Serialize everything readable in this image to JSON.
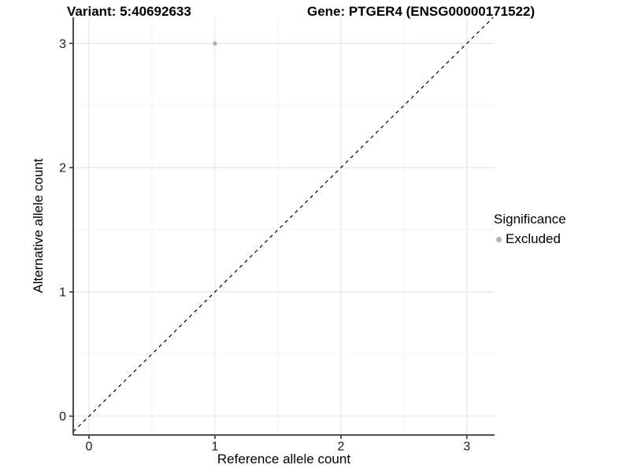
{
  "figure": {
    "titles": {
      "variant": "Variant: 5:40692633",
      "gene": "Gene: PTGER4 (ENSG00000171522)"
    }
  },
  "axes": {
    "x": {
      "label": "Reference allele count",
      "ticks": [
        "0",
        "1",
        "2",
        "3"
      ]
    },
    "y": {
      "label": "Alternative allele count",
      "ticks": [
        "0",
        "1",
        "2",
        "3"
      ]
    }
  },
  "legend": {
    "title": "Significance",
    "items": [
      {
        "label": "Excluded",
        "color": "#b3b3b3"
      }
    ]
  },
  "chart_data": {
    "type": "scatter",
    "title": "Variant: 5:40692633    Gene: PTGER4 (ENSG00000171522)",
    "xlabel": "Reference allele count",
    "ylabel": "Alternative allele count",
    "xlim": [
      -0.125,
      3.22
    ],
    "ylim": [
      -0.152,
      3.21
    ],
    "x_ticks": [
      0,
      1,
      2,
      3
    ],
    "y_ticks": [
      0,
      1,
      2,
      3
    ],
    "x_minor_ticks": [
      0.5,
      1.5,
      2.5
    ],
    "y_minor_ticks": [
      0.5,
      1.5,
      2.5
    ],
    "grid": "on",
    "legend_position": "right",
    "series": [
      {
        "name": "Excluded",
        "color": "#b3b3b3",
        "points": [
          {
            "x": 1,
            "y": 3
          }
        ]
      }
    ],
    "reference_line": {
      "type": "identity",
      "equation": "y = x",
      "style": "dashed",
      "color": "#000000"
    }
  },
  "colors": {
    "background": "#ffffff",
    "grid_major": "#e3e3e3",
    "grid_minor": "#f1f1f1",
    "axis_line": "#383838",
    "tick_text": "#1a1a1a",
    "point": "#b3b3b3",
    "dashed_line": "#000000"
  }
}
